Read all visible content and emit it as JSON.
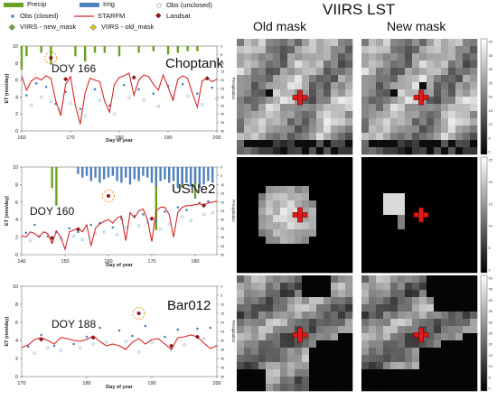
{
  "legend": {
    "precip": "Precip",
    "irrig": "Irrig",
    "obs_closed": "Obs (closed)",
    "starfm": "STARFM",
    "obs_unclosed": "Obs (unclosed)",
    "landsat": "Landsat",
    "viirs_new": "VIIRS - new_mask",
    "viirs_old": "VIIRS - old_mask"
  },
  "colors": {
    "precip": "#6aa121",
    "irrig": "#4f81bd",
    "obs_closed": "#4f81bd",
    "obs_unclosed": "#9fc3e0",
    "starfm": "#d62728",
    "landsat": "#8b1a1a",
    "viirs_new": "#76a33a",
    "viirs_old": "#e6c619",
    "highlight": "#e8a020",
    "cross": "#e01a1a"
  },
  "viirs": {
    "title": "VIIRS LST",
    "old_mask": "Old mask",
    "new_mask": "New mask",
    "colorbars": [
      {
        "ticks": [
          "40",
          "35",
          "30",
          "25",
          "20",
          "15",
          "10",
          "5",
          "0"
        ]
      },
      {
        "ticks": [
          "25",
          "20",
          "15",
          "10",
          "5",
          "0"
        ]
      },
      {
        "ticks": [
          "50",
          "45",
          "40",
          "35",
          "30",
          "25",
          "20",
          "15",
          "10",
          "5",
          "0"
        ]
      }
    ]
  },
  "chart_data": [
    {
      "type": "line",
      "site": "Choptank",
      "doy_label": "DOY 166",
      "highlight_x": 166,
      "ylabel": "ET (mm/day)",
      "y2label": "Precipitation",
      "xlabel": "Day of year",
      "xlim": [
        160,
        200
      ],
      "ylim": [
        0,
        10
      ],
      "xticks": [
        160,
        170,
        180,
        190,
        200
      ],
      "yticks": [
        0,
        2,
        4,
        6,
        8,
        10
      ],
      "y2lim": [
        0,
        50
      ],
      "y2ticks": [
        0,
        5,
        10,
        15,
        20,
        25,
        30,
        35,
        40,
        45,
        50
      ],
      "starfm": {
        "x": [
          160,
          161,
          162,
          163,
          164,
          165,
          166,
          167,
          168,
          169,
          170,
          171,
          172,
          173,
          174,
          175,
          176,
          177,
          178,
          179,
          180,
          181,
          182,
          183,
          184,
          185,
          186,
          187,
          188,
          189,
          190,
          191,
          192,
          193,
          194,
          195,
          196,
          197,
          198,
          199,
          200
        ],
        "y": [
          6.5,
          4.8,
          5.9,
          6.3,
          6.0,
          6.5,
          6.2,
          3.5,
          1.8,
          5.5,
          6.4,
          3.0,
          0.8,
          4.5,
          6.2,
          6.0,
          5.8,
          3.5,
          2.2,
          5.5,
          6.3,
          6.5,
          6.8,
          4.2,
          6.0,
          6.6,
          6.4,
          5.5,
          4.8,
          6.6,
          5.2,
          3.6,
          6.1,
          6.5,
          6.2,
          4.4,
          2.8,
          5.9,
          6.2,
          5.8,
          6.1
        ]
      },
      "obs_closed": {
        "x": [
          161,
          163,
          165,
          167,
          169,
          172,
          175,
          178,
          181,
          184,
          187,
          190,
          193,
          196,
          199
        ],
        "y": [
          4.2,
          5.6,
          5.2,
          3.2,
          4.6,
          2.6,
          4.9,
          3.0,
          5.4,
          4.9,
          4.4,
          5.3,
          5.5,
          4.4,
          5.1
        ]
      },
      "obs_unclosed": {
        "x": [
          162,
          164,
          166,
          168,
          170,
          173,
          176,
          179,
          182,
          185,
          188,
          191,
          194,
          197,
          200
        ],
        "y": [
          3.0,
          4.0,
          3.5,
          2.5,
          3.3,
          1.8,
          3.6,
          2.0,
          3.9,
          3.6,
          2.9,
          3.9,
          4.1,
          3.1,
          3.8
        ]
      },
      "landsat": {
        "x": [
          169,
          183,
          198
        ],
        "y": [
          6.1,
          6.3,
          6.2
        ]
      },
      "viirs_new": {
        "x": [],
        "y": []
      },
      "viirs_old": {
        "x": [],
        "y": []
      },
      "precip": {
        "x": [
          160,
          161,
          164,
          166,
          171,
          173,
          175,
          177,
          180,
          184,
          187,
          190,
          192,
          194,
          196
        ],
        "y": [
          14,
          6,
          4,
          11,
          6,
          9,
          4,
          4,
          6,
          4,
          3,
          5,
          4,
          3,
          3
        ]
      },
      "irrig": {
        "x": [],
        "y": []
      }
    },
    {
      "type": "line",
      "site": "USNe2",
      "doy_label": "DOY 160",
      "highlight_x": 160,
      "ylabel": "ET (mm/day)",
      "y2label": "Precipitation",
      "xlabel": "Day of year",
      "xlim": [
        140,
        185
      ],
      "ylim": [
        0,
        10
      ],
      "xticks": [
        140,
        150,
        160,
        170,
        180
      ],
      "yticks": [
        0,
        2,
        4,
        6,
        8,
        10
      ],
      "y2lim": [
        0,
        50
      ],
      "y2ticks": [
        0,
        5,
        10,
        15,
        20,
        25,
        30,
        35,
        40,
        45,
        50
      ],
      "starfm": {
        "x": [
          140,
          141,
          142,
          143,
          144,
          145,
          146,
          147,
          148,
          149,
          150,
          151,
          152,
          153,
          154,
          155,
          156,
          157,
          158,
          159,
          160,
          161,
          162,
          163,
          164,
          165,
          166,
          167,
          168,
          169,
          170,
          171,
          172,
          173,
          174,
          175,
          176,
          177,
          178,
          179,
          180,
          181,
          182,
          183,
          184,
          185
        ],
        "y": [
          2.2,
          2.0,
          2.6,
          2.4,
          2.0,
          2.6,
          2.4,
          1.3,
          2.7,
          2.0,
          0.6,
          2.6,
          2.8,
          3.0,
          2.6,
          3.4,
          1.0,
          3.0,
          3.5,
          3.8,
          4.0,
          3.6,
          4.2,
          4.4,
          1.6,
          4.8,
          4.2,
          5.0,
          5.2,
          4.0,
          1.5,
          5.0,
          5.4,
          5.4,
          4.6,
          2.0,
          4.8,
          5.4,
          5.6,
          5.6,
          5.7,
          5.8,
          5.7,
          5.9,
          6.0,
          6.1
        ]
      },
      "obs_closed": {
        "x": [
          141,
          143,
          146,
          148,
          151,
          153,
          156,
          158,
          161,
          163,
          166,
          168,
          171,
          173,
          176,
          178,
          181,
          183
        ],
        "y": [
          2.5,
          3.4,
          2.1,
          2.6,
          3.0,
          2.6,
          3.4,
          3.6,
          3.1,
          4.1,
          4.4,
          4.6,
          3.9,
          4.9,
          5.4,
          5.1,
          5.9,
          6.1
        ]
      },
      "obs_unclosed": {
        "x": [
          142,
          144,
          147,
          149,
          152,
          154,
          157,
          159,
          162,
          164,
          167,
          169,
          172,
          174,
          177,
          179,
          182,
          184
        ],
        "y": [
          1.6,
          2.1,
          1.4,
          1.9,
          2.1,
          1.7,
          2.4,
          2.6,
          2.3,
          3.1,
          3.3,
          3.7,
          2.9,
          3.5,
          4.3,
          3.9,
          4.6,
          4.8
        ]
      },
      "landsat": {
        "x": [
          147,
          153,
          170,
          182
        ],
        "y": [
          1.9,
          2.9,
          4.1,
          5.6
        ]
      },
      "viirs_new": {
        "x": [],
        "y": []
      },
      "viirs_old": {
        "x": [],
        "y": []
      },
      "precip": {
        "x": [
          147,
          148,
          167,
          171,
          177,
          180
        ],
        "y": [
          12,
          22,
          6,
          36,
          12,
          18
        ]
      },
      "irrig": {
        "x": [
          153,
          154,
          155,
          156,
          157,
          158,
          159,
          160,
          161,
          162,
          163,
          164,
          165,
          166,
          167,
          168,
          169,
          170,
          171,
          172,
          173,
          174,
          175,
          176,
          177,
          178,
          179,
          180,
          181,
          182,
          183,
          184
        ],
        "y": [
          4,
          6,
          5,
          8,
          6,
          9,
          7,
          6,
          5,
          8,
          9,
          6,
          10,
          7,
          8,
          5,
          6,
          9,
          11,
          8,
          7,
          9,
          8,
          12,
          10,
          9,
          11,
          9,
          12,
          10,
          8,
          9
        ]
      }
    },
    {
      "type": "line",
      "site": "Bar012",
      "doy_label": "DOY 188",
      "highlight_x": 188,
      "ylabel": "ET (mm/day)",
      "y2label": "Precipitation",
      "xlabel": "Day of year",
      "xlim": [
        170,
        200
      ],
      "ylim": [
        0,
        10
      ],
      "xticks": [
        170,
        180,
        190,
        200
      ],
      "yticks": [
        0,
        2,
        4,
        6,
        8,
        10
      ],
      "y2lim": [
        0,
        50
      ],
      "y2ticks": [
        0,
        5,
        10,
        15,
        20,
        25,
        30,
        35,
        40,
        45,
        50
      ],
      "starfm": {
        "x": [
          170,
          171,
          172,
          173,
          174,
          175,
          176,
          177,
          178,
          179,
          180,
          181,
          182,
          183,
          184,
          185,
          186,
          187,
          188,
          189,
          190,
          191,
          192,
          193,
          194,
          195,
          196,
          197,
          198,
          199,
          200
        ],
        "y": [
          3.2,
          3.5,
          4.1,
          4.3,
          4.0,
          3.6,
          4.3,
          4.2,
          4.0,
          3.9,
          4.1,
          4.5,
          3.9,
          3.4,
          3.6,
          3.4,
          3.0,
          3.8,
          4.2,
          3.6,
          4.1,
          4.2,
          3.6,
          3.0,
          4.3,
          4.4,
          4.6,
          4.4,
          3.7,
          3.1,
          3.4
        ]
      },
      "obs_closed": {
        "x": [
          171,
          173,
          175,
          178,
          180,
          182,
          185,
          187,
          189,
          192,
          194,
          197,
          199
        ],
        "y": [
          3.3,
          4.6,
          3.4,
          3.6,
          4.4,
          5.4,
          5.1,
          4.5,
          5.6,
          4.4,
          5.2,
          5.3,
          5.4
        ]
      },
      "obs_unclosed": {
        "x": [
          172,
          174,
          176,
          179,
          181,
          183,
          186,
          188,
          190,
          193,
          195,
          198,
          200
        ],
        "y": [
          2.6,
          3.2,
          2.9,
          3.2,
          3.6,
          3.8,
          3.9,
          2.7,
          3.8,
          3.0,
          3.5,
          4.2,
          3.4
        ]
      },
      "landsat": {
        "x": [
          173,
          181,
          193,
          197
        ],
        "y": [
          4.1,
          4.3,
          3.4,
          4.4
        ]
      },
      "viirs_new": {
        "x": [],
        "y": []
      },
      "viirs_old": {
        "x": [],
        "y": []
      },
      "precip": {
        "x": [],
        "y": []
      },
      "irrig": {
        "x": [],
        "y": []
      }
    }
  ]
}
